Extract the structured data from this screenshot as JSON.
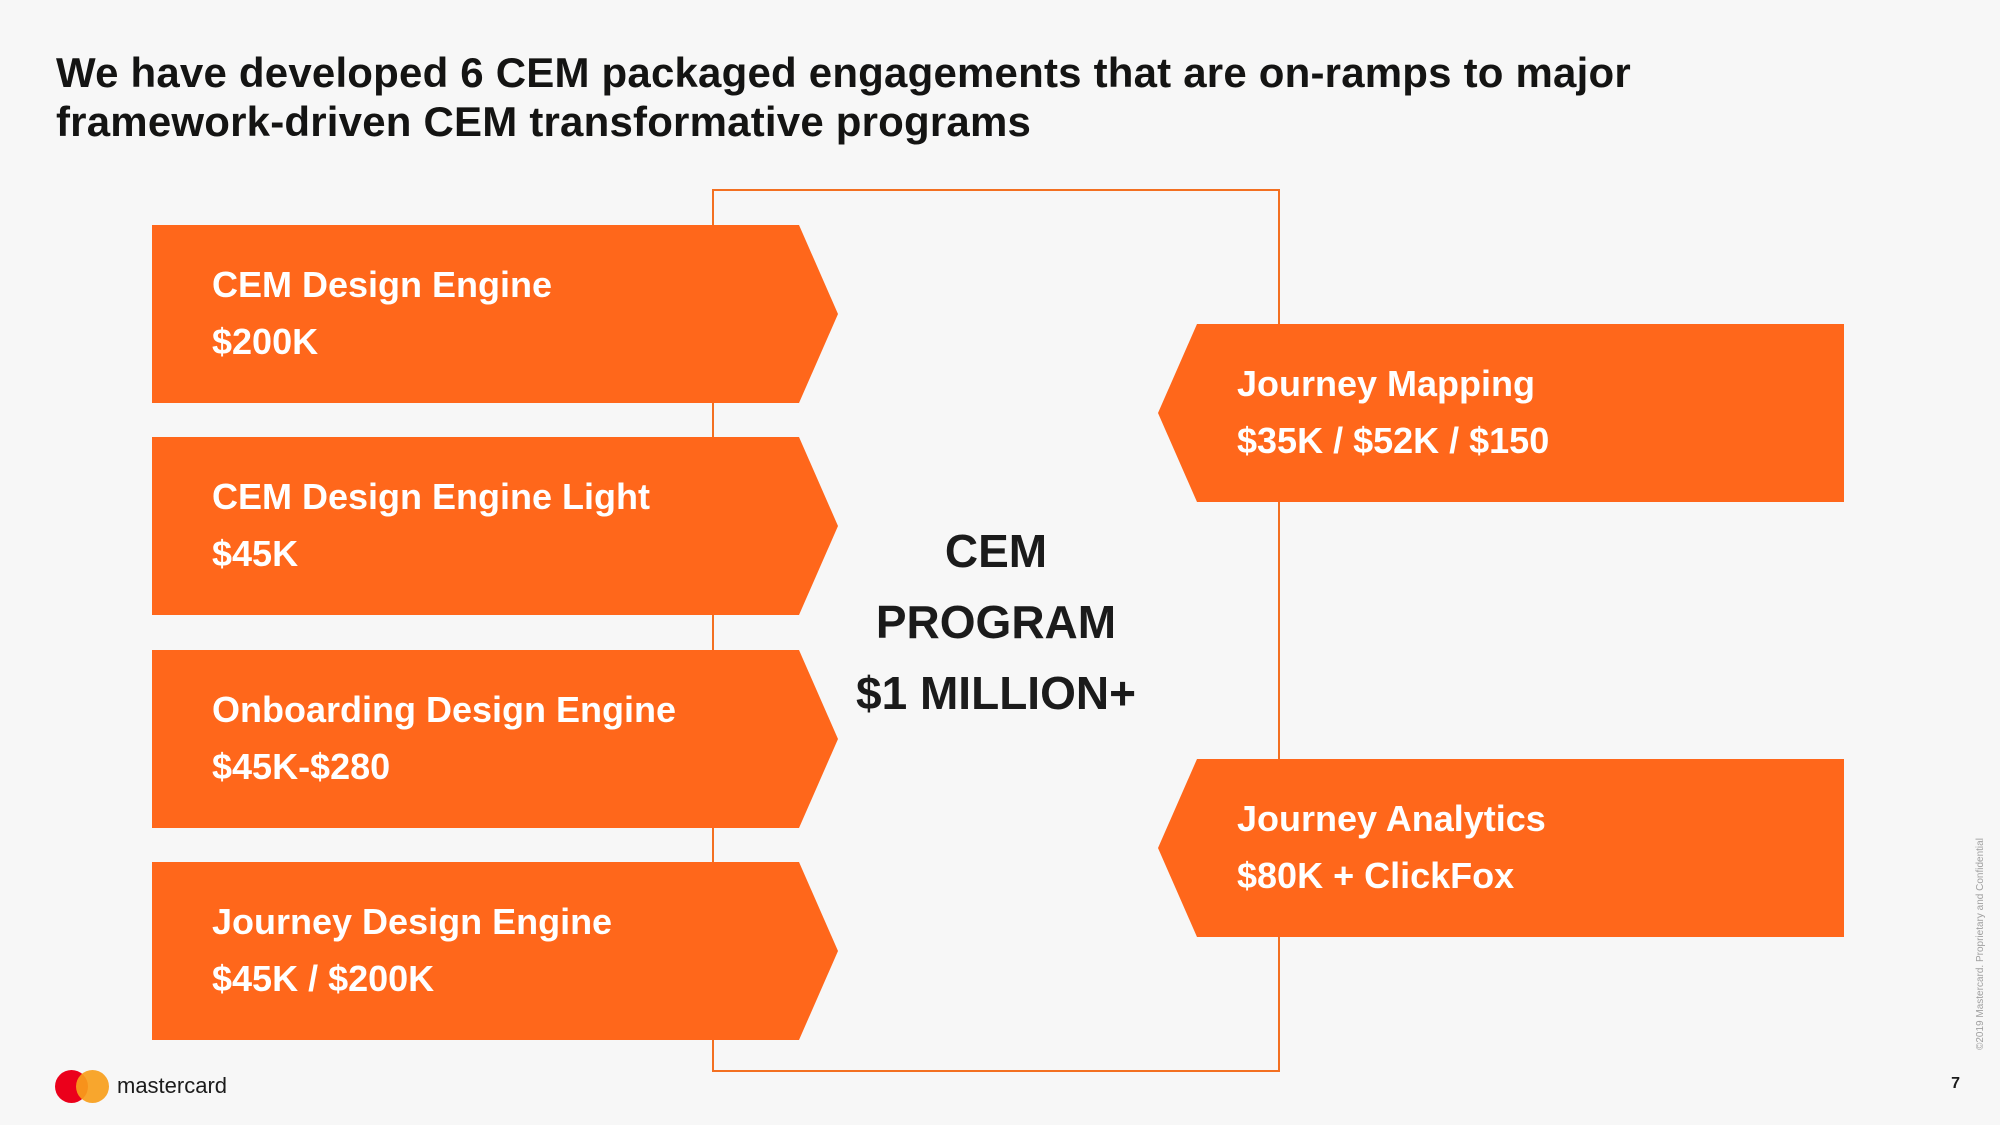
{
  "title": {
    "line1": "We have developed 6 CEM packaged engagements that are on-ramps to major",
    "line2": "framework-driven CEM transformative programs"
  },
  "left_engagements": [
    {
      "name": "CEM Design Engine",
      "price": "$200K"
    },
    {
      "name": "CEM Design Engine Light",
      "price": "$45K"
    },
    {
      "name": "Onboarding Design Engine",
      "price": "$45K-$280"
    },
    {
      "name": "Journey Design Engine",
      "price": "$45K / $200K"
    }
  ],
  "right_engagements": [
    {
      "name": "Journey Mapping",
      "price": "$35K / $52K / $150"
    },
    {
      "name": "Journey Analytics",
      "price": "$80K + ClickFox"
    }
  ],
  "program": {
    "line1": "CEM",
    "line2": "PROGRAM",
    "line3": "$1 MILLION+"
  },
  "footer": {
    "brand": "mastercard",
    "copyright": "©2019 Mastercard. Proprietary and Confidential",
    "page_number": "7"
  },
  "colors": {
    "accent": "#ff671b",
    "frame": "#f37021",
    "background": "#f7f7f7"
  }
}
